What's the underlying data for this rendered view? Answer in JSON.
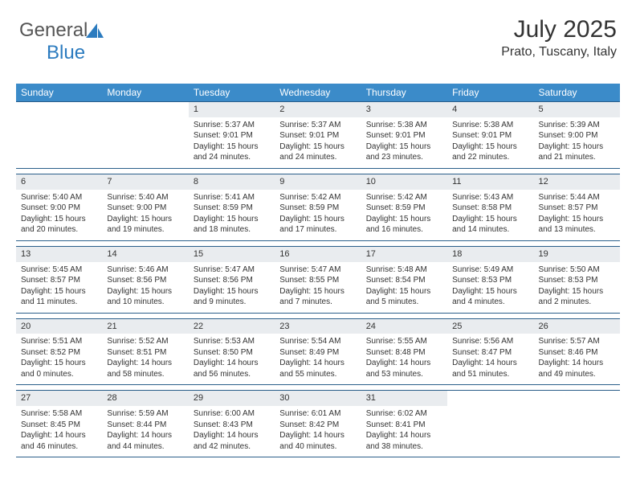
{
  "logo": {
    "part1": "General",
    "part2": "Blue"
  },
  "title": "July 2025",
  "location": "Prato, Tuscany, Italy",
  "colors": {
    "header_bg": "#3b8bc9",
    "header_text": "#ffffff",
    "rule": "#2b5f8a",
    "daynum_bg": "#e9ecef",
    "text": "#333333",
    "logo_gray": "#555555",
    "logo_blue": "#2b7bbf"
  },
  "day_names": [
    "Sunday",
    "Monday",
    "Tuesday",
    "Wednesday",
    "Thursday",
    "Friday",
    "Saturday"
  ],
  "weeks": [
    [
      null,
      null,
      {
        "n": "1",
        "sr": "5:37 AM",
        "ss": "9:01 PM",
        "dl": "15 hours and 24 minutes."
      },
      {
        "n": "2",
        "sr": "5:37 AM",
        "ss": "9:01 PM",
        "dl": "15 hours and 24 minutes."
      },
      {
        "n": "3",
        "sr": "5:38 AM",
        "ss": "9:01 PM",
        "dl": "15 hours and 23 minutes."
      },
      {
        "n": "4",
        "sr": "5:38 AM",
        "ss": "9:01 PM",
        "dl": "15 hours and 22 minutes."
      },
      {
        "n": "5",
        "sr": "5:39 AM",
        "ss": "9:00 PM",
        "dl": "15 hours and 21 minutes."
      }
    ],
    [
      {
        "n": "6",
        "sr": "5:40 AM",
        "ss": "9:00 PM",
        "dl": "15 hours and 20 minutes."
      },
      {
        "n": "7",
        "sr": "5:40 AM",
        "ss": "9:00 PM",
        "dl": "15 hours and 19 minutes."
      },
      {
        "n": "8",
        "sr": "5:41 AM",
        "ss": "8:59 PM",
        "dl": "15 hours and 18 minutes."
      },
      {
        "n": "9",
        "sr": "5:42 AM",
        "ss": "8:59 PM",
        "dl": "15 hours and 17 minutes."
      },
      {
        "n": "10",
        "sr": "5:42 AM",
        "ss": "8:59 PM",
        "dl": "15 hours and 16 minutes."
      },
      {
        "n": "11",
        "sr": "5:43 AM",
        "ss": "8:58 PM",
        "dl": "15 hours and 14 minutes."
      },
      {
        "n": "12",
        "sr": "5:44 AM",
        "ss": "8:57 PM",
        "dl": "15 hours and 13 minutes."
      }
    ],
    [
      {
        "n": "13",
        "sr": "5:45 AM",
        "ss": "8:57 PM",
        "dl": "15 hours and 11 minutes."
      },
      {
        "n": "14",
        "sr": "5:46 AM",
        "ss": "8:56 PM",
        "dl": "15 hours and 10 minutes."
      },
      {
        "n": "15",
        "sr": "5:47 AM",
        "ss": "8:56 PM",
        "dl": "15 hours and 9 minutes."
      },
      {
        "n": "16",
        "sr": "5:47 AM",
        "ss": "8:55 PM",
        "dl": "15 hours and 7 minutes."
      },
      {
        "n": "17",
        "sr": "5:48 AM",
        "ss": "8:54 PM",
        "dl": "15 hours and 5 minutes."
      },
      {
        "n": "18",
        "sr": "5:49 AM",
        "ss": "8:53 PM",
        "dl": "15 hours and 4 minutes."
      },
      {
        "n": "19",
        "sr": "5:50 AM",
        "ss": "8:53 PM",
        "dl": "15 hours and 2 minutes."
      }
    ],
    [
      {
        "n": "20",
        "sr": "5:51 AM",
        "ss": "8:52 PM",
        "dl": "15 hours and 0 minutes."
      },
      {
        "n": "21",
        "sr": "5:52 AM",
        "ss": "8:51 PM",
        "dl": "14 hours and 58 minutes."
      },
      {
        "n": "22",
        "sr": "5:53 AM",
        "ss": "8:50 PM",
        "dl": "14 hours and 56 minutes."
      },
      {
        "n": "23",
        "sr": "5:54 AM",
        "ss": "8:49 PM",
        "dl": "14 hours and 55 minutes."
      },
      {
        "n": "24",
        "sr": "5:55 AM",
        "ss": "8:48 PM",
        "dl": "14 hours and 53 minutes."
      },
      {
        "n": "25",
        "sr": "5:56 AM",
        "ss": "8:47 PM",
        "dl": "14 hours and 51 minutes."
      },
      {
        "n": "26",
        "sr": "5:57 AM",
        "ss": "8:46 PM",
        "dl": "14 hours and 49 minutes."
      }
    ],
    [
      {
        "n": "27",
        "sr": "5:58 AM",
        "ss": "8:45 PM",
        "dl": "14 hours and 46 minutes."
      },
      {
        "n": "28",
        "sr": "5:59 AM",
        "ss": "8:44 PM",
        "dl": "14 hours and 44 minutes."
      },
      {
        "n": "29",
        "sr": "6:00 AM",
        "ss": "8:43 PM",
        "dl": "14 hours and 42 minutes."
      },
      {
        "n": "30",
        "sr": "6:01 AM",
        "ss": "8:42 PM",
        "dl": "14 hours and 40 minutes."
      },
      {
        "n": "31",
        "sr": "6:02 AM",
        "ss": "8:41 PM",
        "dl": "14 hours and 38 minutes."
      },
      null,
      null
    ]
  ],
  "labels": {
    "sunrise": "Sunrise: ",
    "sunset": "Sunset: ",
    "daylight": "Daylight: "
  }
}
